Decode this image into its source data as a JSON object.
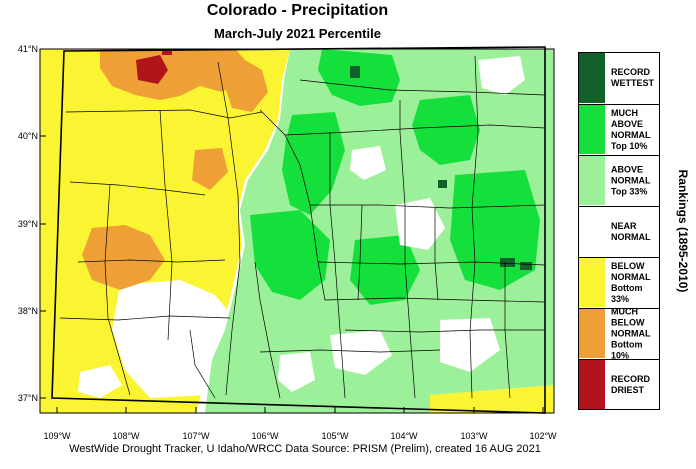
{
  "title": "Colorado - Precipitation",
  "subtitle": "March-July 2021 Percentile",
  "map": {
    "region": "Colorado",
    "lat_ticks": [
      "41°N",
      "40°N",
      "39°N",
      "38°N",
      "37°N"
    ],
    "lon_ticks": [
      "109°W",
      "108°W",
      "107°W",
      "106°W",
      "105°W",
      "104°W",
      "103°W",
      "102°W"
    ]
  },
  "legend": {
    "title": "Rankings (1895-2010)",
    "items": [
      {
        "label": "RECORD\nWETTEST",
        "color": "#12602a"
      },
      {
        "label": "MUCH\nABOVE\nNORMAL\nTop 10%",
        "color": "#15e03b"
      },
      {
        "label": "ABOVE\nNORMAL\nTop 33%",
        "color": "#9cf09a"
      },
      {
        "label": "NEAR\nNORMAL",
        "color": "#ffffff"
      },
      {
        "label": "BELOW\nNORMAL\nBottom 33%",
        "color": "#fbf432"
      },
      {
        "label": "MUCH\nBELOW\nNORMAL\nBottom 10%",
        "color": "#eea037"
      },
      {
        "label": "RECORD\nDRIEST",
        "color": "#b2141c"
      }
    ]
  },
  "credit": "WestWide Drought Tracker, U Idaho/WRCC Data Source: PRISM (Prelim), created 16 AUG 2021"
}
